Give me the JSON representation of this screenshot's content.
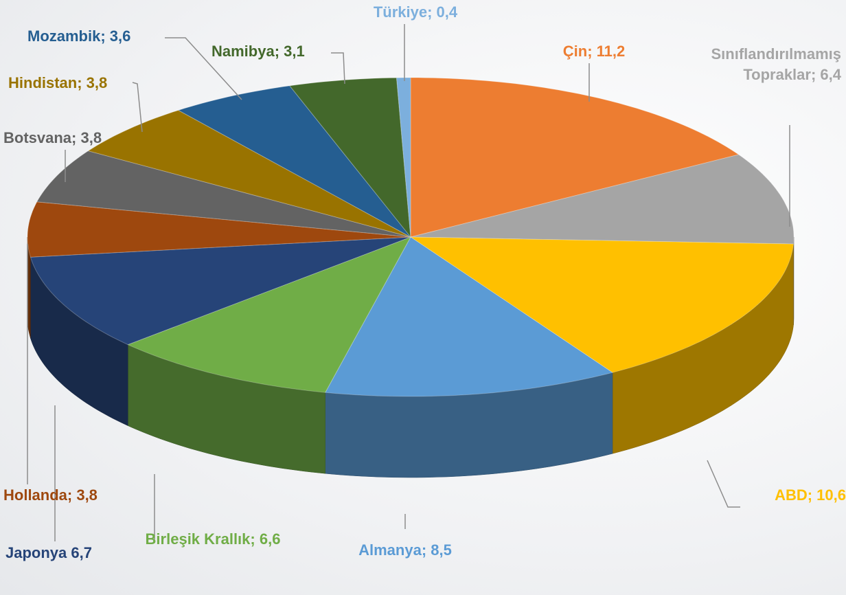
{
  "chart_data": {
    "type": "pie3d",
    "values": [
      11.2,
      6.4,
      10.6,
      8.5,
      6.6,
      6.7,
      3.8,
      3.8,
      3.8,
      3.6,
      3.1,
      0.4
    ],
    "value_labels": [
      "Çin; 11,2",
      "Sınıflandırılmamış Topraklar; 6,4",
      "ABD; 10,6",
      "Almanya; 8,5",
      "Birleşik Krallık; 6,6",
      "Japonya 6,7",
      "Hollanda; 3,8",
      "Botsvana; 3,8",
      "Hindistan; 3,8",
      "Mozambik; 3,6",
      "Namibya; 3,1",
      "Türkiye; 0,4"
    ],
    "colors": [
      "#ED7D31",
      "#A5A5A5",
      "#FFC000",
      "#5B9BD5",
      "#70AD47",
      "#264478",
      "#9E480E",
      "#636363",
      "#997300",
      "#255E91",
      "#43682B",
      "#7CAFDD"
    ]
  }
}
